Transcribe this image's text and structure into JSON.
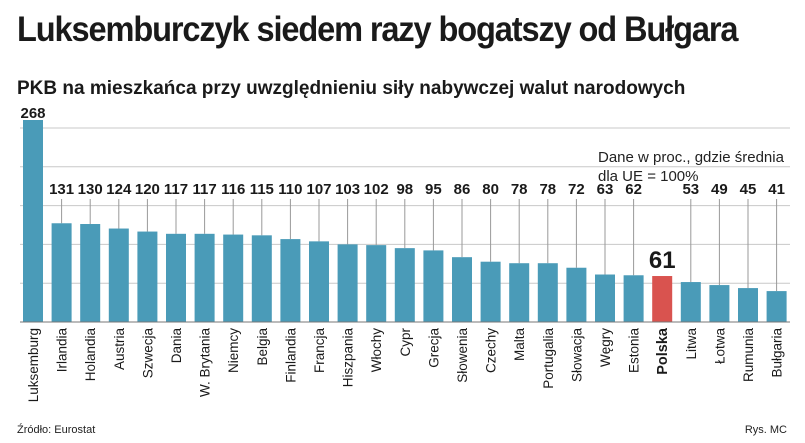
{
  "header": {
    "title": "Luksemburczyk siedem razy bogatszy od Bułgara",
    "subtitle": "PKB na mieszkańca przy uwzględnieniu siły nabywczej walut narodowych"
  },
  "note": "Dane w proc., gdzie średnia dla UE = 100%",
  "footer": {
    "source": "Źródło: Eurostat",
    "credit": "Rys. MC"
  },
  "colors": {
    "bar": "#4a9bb8",
    "highlight": "#d9534f",
    "grid": "#c8c8c8"
  },
  "chart_data": {
    "type": "bar",
    "categories": [
      "Luksemburg",
      "Irlandia",
      "Holandia",
      "Austria",
      "Szwecja",
      "Dania",
      "W. Brytania",
      "Niemcy",
      "Belgia",
      "Finlandia",
      "Francja",
      "Hiszpania",
      "Włochy",
      "Cypr",
      "Grecja",
      "Słowenia",
      "Czechy",
      "Malta",
      "Portugalia",
      "Słowacja",
      "Węgry",
      "Estonia",
      "Polska",
      "Litwa",
      "Łotwa",
      "Rumunia",
      "Bułgaria"
    ],
    "values": [
      268,
      131,
      130,
      124,
      120,
      117,
      117,
      116,
      115,
      110,
      107,
      103,
      102,
      98,
      95,
      86,
      80,
      78,
      78,
      72,
      63,
      62,
      61,
      53,
      49,
      45,
      41
    ],
    "value_labels": [
      "268",
      "131",
      "130",
      "124",
      "120",
      "117",
      "117",
      "116",
      "115",
      "110",
      "107",
      "103",
      "102",
      "98",
      "95",
      "86",
      "80",
      "78",
      "78",
      "72",
      "63",
      "62",
      "61",
      "53",
      "49",
      "45",
      "41"
    ],
    "highlight": "Polska",
    "ylim": [
      0,
      268
    ],
    "grid": true
  }
}
